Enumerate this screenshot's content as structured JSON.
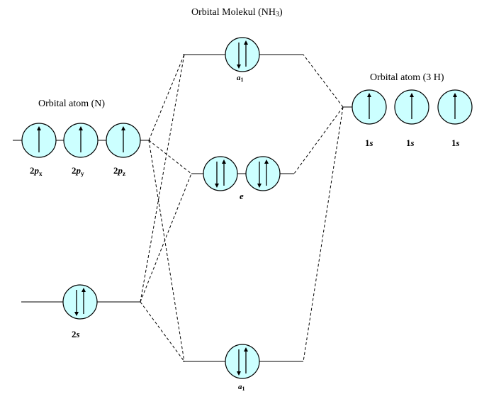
{
  "titles": {
    "molecule": "Orbital Molekul (NH",
    "molecule_sub": "3",
    "molecule_end": ")",
    "n_atom": "Orbital atom (N)",
    "h_atom": "Orbital atom (3 H)"
  },
  "n_labels": {
    "p_prefix": "2",
    "p_letter": "p",
    "px": "x",
    "py": "y",
    "pz": "z",
    "s_prefix": "2",
    "s_letter": "s"
  },
  "h_labels": {
    "prefix": "1",
    "letter": "s"
  },
  "mo_labels": {
    "a_letter": "a",
    "a_sub": "1",
    "e": "e"
  },
  "colors": {
    "orbital_fill": "#ccffff",
    "line": "#000000"
  },
  "electrons": {
    "n_2p": [
      "up",
      "up",
      "up"
    ],
    "n_2s": [
      "pair"
    ],
    "h_1s": [
      "up",
      "up",
      "up"
    ],
    "mo_top_a1": [
      "pair"
    ],
    "mo_e": [
      "pair",
      "pair"
    ],
    "mo_bottom_a1": [
      "pair"
    ]
  }
}
